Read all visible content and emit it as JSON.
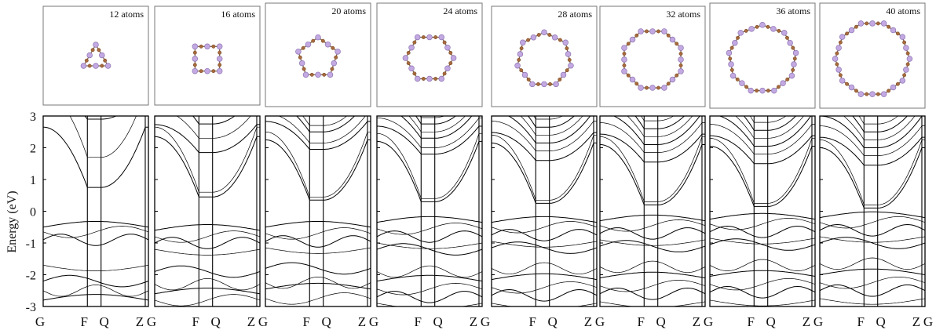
{
  "figure": {
    "ylabel": "Energy (eV)",
    "ytick_labels": [
      "3",
      "2",
      "1",
      "0",
      "-1",
      "-2",
      "-3"
    ],
    "xtick_labels": [
      "G",
      "F",
      "Q",
      "Z",
      "G"
    ]
  },
  "structures": [
    {
      "label": "12 atoms",
      "atoms": 12,
      "sides": 3
    },
    {
      "label": "16 atoms",
      "atoms": 16,
      "sides": 4
    },
    {
      "label": "20 atoms",
      "atoms": 20,
      "sides": 5
    },
    {
      "label": "24 atoms",
      "atoms": 24,
      "sides": 6
    },
    {
      "label": "28 atoms",
      "atoms": 28,
      "sides": 7
    },
    {
      "label": "32 atoms",
      "atoms": 32,
      "sides": 8
    },
    {
      "label": "36 atoms",
      "atoms": 36,
      "sides": 9
    },
    {
      "label": "40 atoms",
      "atoms": 40,
      "sides": 10
    }
  ],
  "colors": {
    "atom_large": "#c3a9e2",
    "atom_large_edge": "#8d74b3",
    "atom_small": "#a86a3c",
    "bond": "#7a5a40",
    "band_line": "#000000"
  },
  "chart_data": {
    "type": "line",
    "ylabel": "Energy (eV)",
    "ylim": [
      -3,
      3
    ],
    "yticks": [
      3,
      2,
      1,
      0,
      -1,
      -2,
      -3
    ],
    "kpath": [
      "G",
      "F",
      "Q",
      "Z",
      "G"
    ],
    "kpath_positions": [
      0,
      0.42,
      0.55,
      0.97,
      1.0
    ],
    "panels": [
      {
        "label": "12 atoms",
        "cb_min": 0.75,
        "vb_max": -0.5,
        "cb_bands": [
          0.75,
          1.7,
          2.9
        ],
        "vb_bands": [
          -0.5,
          -0.65,
          -0.9,
          -1.7,
          -2.2,
          -2.5,
          -2.8
        ]
      },
      {
        "label": "16 atoms",
        "cb_min": 0.45,
        "vb_max": -0.6,
        "cb_bands": [
          0.45,
          0.6,
          1.85,
          2.3,
          2.75,
          3.0
        ],
        "vb_bands": [
          -0.6,
          -0.8,
          -1.0,
          -1.2,
          -1.9,
          -2.3,
          -2.6,
          -2.8
        ]
      },
      {
        "label": "20 atoms",
        "cb_min": 0.35,
        "vb_max": -0.5,
        "cb_bands": [
          0.35,
          0.45,
          1.95,
          2.15,
          2.5,
          2.7,
          3.0
        ],
        "vb_bands": [
          -0.5,
          -0.7,
          -0.95,
          -1.15,
          -1.8,
          -2.25,
          -2.45,
          -2.75
        ]
      },
      {
        "label": "24 atoms",
        "cb_min": 0.3,
        "vb_max": -0.35,
        "cb_bands": [
          0.3,
          0.4,
          1.8,
          2.0,
          2.3,
          2.5,
          2.75,
          2.95
        ],
        "vb_bands": [
          -0.35,
          -0.55,
          -0.8,
          -1.0,
          -1.2,
          -1.9,
          -2.2,
          -2.45,
          -2.7,
          -2.9
        ]
      },
      {
        "label": "28 atoms",
        "cb_min": 0.25,
        "vb_max": -0.35,
        "cb_bands": [
          0.25,
          0.35,
          1.6,
          1.9,
          2.15,
          2.4,
          2.65,
          2.9
        ],
        "vb_bands": [
          -0.35,
          -0.5,
          -0.75,
          -0.95,
          -1.15,
          -1.8,
          -2.15,
          -2.4,
          -2.65,
          -2.9
        ]
      },
      {
        "label": "32 atoms",
        "cb_min": 0.2,
        "vb_max": -0.3,
        "cb_bands": [
          0.2,
          0.3,
          1.55,
          1.85,
          2.1,
          2.35,
          2.6,
          2.85
        ],
        "vb_bands": [
          -0.3,
          -0.45,
          -0.7,
          -0.9,
          -1.1,
          -1.75,
          -2.1,
          -2.35,
          -2.6,
          -2.85
        ]
      },
      {
        "label": "36 atoms",
        "cb_min": 0.15,
        "vb_max": -0.25,
        "cb_bands": [
          0.15,
          0.25,
          1.5,
          1.8,
          2.05,
          2.3,
          2.55,
          2.8
        ],
        "vb_bands": [
          -0.25,
          -0.4,
          -0.65,
          -0.85,
          -1.05,
          -1.7,
          -2.05,
          -2.3,
          -2.55,
          -2.8
        ]
      },
      {
        "label": "40 atoms",
        "cb_min": 0.1,
        "vb_max": -0.2,
        "cb_bands": [
          0.1,
          0.2,
          1.45,
          1.75,
          2.0,
          2.25,
          2.5,
          2.75
        ],
        "vb_bands": [
          -0.2,
          -0.35,
          -0.6,
          -0.8,
          -1.0,
          -1.65,
          -2.0,
          -2.25,
          -2.5,
          -2.75
        ]
      }
    ]
  }
}
